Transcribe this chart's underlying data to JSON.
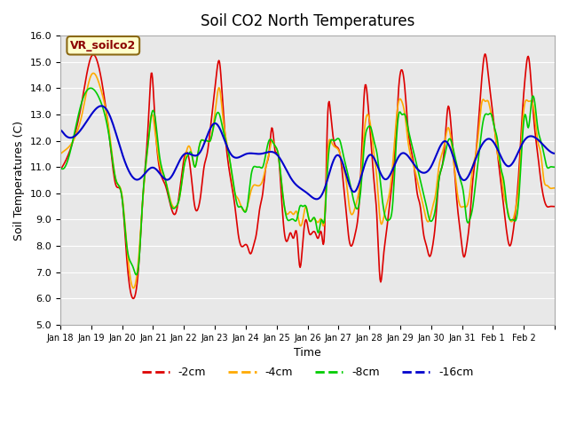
{
  "title": "Soil CO2 North Temperatures",
  "xlabel": "Time",
  "ylabel": "Soil Temperatures (C)",
  "ylim": [
    5.0,
    16.0
  ],
  "yticks": [
    5.0,
    6.0,
    7.0,
    8.0,
    9.0,
    10.0,
    11.0,
    12.0,
    13.0,
    14.0,
    15.0,
    16.0
  ],
  "annotation_text": "VR_soilco2",
  "line_colors": {
    "-2cm": "#dd0000",
    "-4cm": "#ffaa00",
    "-8cm": "#00cc00",
    "-16cm": "#0000cc"
  },
  "legend_labels": [
    "-2cm",
    "-4cm",
    "-8cm",
    "-16cm"
  ],
  "background_color": "#ffffff",
  "plot_bg_color": "#e8e8e8",
  "grid_color": "#ffffff",
  "xtick_labels": [
    "Jan 18",
    "Jan 19",
    "Jan 20",
    "Jan 21",
    "Jan 22",
    "Jan 23",
    "Jan 24",
    "Jan 25",
    "Jan 26",
    "Jan 27",
    "Jan 28",
    "Jan 29",
    "Jan 30",
    "Jan 31",
    "Feb 1",
    "Feb 2",
    ""
  ]
}
